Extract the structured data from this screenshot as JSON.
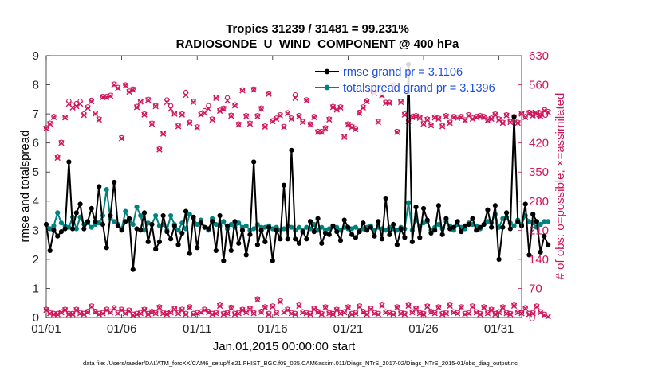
{
  "chart_data": {
    "type": "line",
    "title": "Tropics 31239 / 31481 = 99.231%",
    "subtitle": "RADIOSONDE_U_WIND_COMPONENT @ 400 hPa",
    "xlabel": "Jan.01,2015 00:00:00 start",
    "ylabel_left": "rmse and totalspread",
    "ylabel_right": "# of obs: o=possible; ×=assimilated",
    "footer": "data file: /Users/raeder/DAI/ATM_forcXX/CAM6_setup/f.e21.FHIST_BGC.f09_025.CAM6assim.011/Diags_NTrS_2017-02/Diags_NTrS_2015-01/obs_diag_output.nc",
    "xlim": [
      0,
      31.5
    ],
    "ylim_left": [
      0,
      9
    ],
    "ylim_right": [
      0,
      630
    ],
    "x_ticks": [
      0,
      5,
      10,
      15,
      20,
      25,
      30
    ],
    "x_tick_labels": [
      "01/01",
      "01/06",
      "01/11",
      "01/16",
      "01/21",
      "01/26",
      "01/31"
    ],
    "y_left_ticks": [
      0,
      1,
      2,
      3,
      4,
      5,
      6,
      7,
      8,
      9
    ],
    "y_left_tick_labels": [
      "0",
      "1",
      "2",
      "3",
      "4",
      "5",
      "6",
      "7",
      "8",
      "9"
    ],
    "y_right_ticks": [
      0,
      70,
      140,
      210,
      280,
      350,
      420,
      490,
      560,
      630
    ],
    "y_right_tick_labels": [
      "0",
      "70",
      "140",
      "210",
      "280",
      "350",
      "420",
      "490",
      "560",
      "630"
    ],
    "colors": {
      "rmse": "#000000",
      "spread": "#00837f",
      "obs": "#d0145a",
      "legend_text": "#1f4fe0"
    },
    "legend": [
      {
        "label": "rmse grand pr = 3.1106",
        "series": "rmse"
      },
      {
        "label": "totalspread grand pr = 3.1396",
        "series": "spread"
      }
    ],
    "time_step": 0.25,
    "series": [
      {
        "name": "rmse",
        "values": [
          3.2,
          2.3,
          3.0,
          2.8,
          2.95,
          3.05,
          5.35,
          3.05,
          3.6,
          3.9,
          3.05,
          3.3,
          3.75,
          3.3,
          4.5,
          3.2,
          2.4,
          3.5,
          4.65,
          3.15,
          3.0,
          3.3,
          3.4,
          1.65,
          3.05,
          3.0,
          3.6,
          2.6,
          3.2,
          2.35,
          2.6,
          3.5,
          2.95,
          2.7,
          3.15,
          2.5,
          2.9,
          3.65,
          2.2,
          3.45,
          2.4,
          3.25,
          3.1,
          3.05,
          3.3,
          2.3,
          3.5,
          1.95,
          3.15,
          2.3,
          3.3,
          2.55,
          3.0,
          2.15,
          2.85,
          5.35,
          2.5,
          3.0,
          2.6,
          3.1,
          1.95,
          3.0,
          2.7,
          4.55,
          2.7,
          5.75,
          2.7,
          2.55,
          2.95,
          2.7,
          3.3,
          2.95,
          3.4,
          2.55,
          2.9,
          2.85,
          3.15,
          2.95,
          2.65,
          3.35,
          3.1,
          2.85,
          2.75,
          2.95,
          3.25,
          3.0,
          3.1,
          2.8,
          3.3,
          2.7,
          4.1,
          2.85,
          3.2,
          2.5,
          3.05,
          2.75,
          8.7,
          2.6,
          3.8,
          2.75,
          3.75,
          3.35,
          2.9,
          3.0,
          3.85,
          2.85,
          3.4,
          3.05,
          3.1,
          3.3,
          2.95,
          3.15,
          3.2,
          3.4,
          3.0,
          3.1,
          3.2,
          3.7,
          3.1,
          3.85,
          2.0,
          3.1,
          3.6,
          3.05,
          6.9,
          3.3,
          3.15,
          3.9,
          2.15,
          3.55,
          3.3,
          2.25,
          2.8,
          2.5
        ],
        "marker": "filled-circle"
      },
      {
        "name": "totalspread",
        "values": [
          3.2,
          3.05,
          3.15,
          3.6,
          3.25,
          3.15,
          3.1,
          3.45,
          3.05,
          3.45,
          3.2,
          3.25,
          3.1,
          3.2,
          3.25,
          3.5,
          4.4,
          3.4,
          3.3,
          3.2,
          3.05,
          3.65,
          3.35,
          3.2,
          3.8,
          3.5,
          3.0,
          3.25,
          3.2,
          3.5,
          3.15,
          3.2,
          3.0,
          3.5,
          3.2,
          3.0,
          3.25,
          3.05,
          3.55,
          3.4,
          3.2,
          3.35,
          3.1,
          3.0,
          3.4,
          3.2,
          3.15,
          3.3,
          3.05,
          3.2,
          3.1,
          3.25,
          3.1,
          3.15,
          3.0,
          3.05,
          3.2,
          3.1,
          3.1,
          3.15,
          3.05,
          3.1,
          3.0,
          3.05,
          3.15,
          3.1,
          3.0,
          3.1,
          3.0,
          3.1,
          3.05,
          3.2,
          3.0,
          3.1,
          3.0,
          3.05,
          3.15,
          3.1,
          3.0,
          3.1,
          3.05,
          3.05,
          3.1,
          3.0,
          3.05,
          3.1,
          3.15,
          3.0,
          3.1,
          3.05,
          3.0,
          3.1,
          3.05,
          3.0,
          3.1,
          3.05,
          3.95,
          3.0,
          3.35,
          3.15,
          3.25,
          3.3,
          3.0,
          3.1,
          3.2,
          3.05,
          3.3,
          3.15,
          3.0,
          3.2,
          3.1,
          3.05,
          3.25,
          3.2,
          3.15,
          3.05,
          3.2,
          3.3,
          3.25,
          3.55,
          3.1,
          3.4,
          3.45,
          3.25,
          3.15,
          3.35,
          3.2,
          3.5,
          3.3,
          3.25,
          3.1,
          3.2,
          3.3,
          3.3
        ],
        "marker": "filled-circle"
      },
      {
        "name": "obs_possible_upper",
        "values": [
          457,
          468,
          484,
          386,
          422,
          483,
          521,
          512,
          515,
          521,
          490,
          507,
          523,
          492,
          478,
          532,
          532,
          535,
          562,
          554,
          433,
          560,
          545,
          550,
          508,
          521,
          490,
          525,
          468,
          510,
          406,
          444,
          524,
          510,
          492,
          462,
          490,
          542,
          470,
          520,
          459,
          490,
          498,
          510,
          478,
          530,
          499,
          504,
          529,
          487,
          512,
          466,
          548,
          486,
          468,
          550,
          486,
          504,
          461,
          540,
          474,
          480,
          488,
          460,
          493,
          480,
          536,
          486,
          472,
          524,
          466,
          484,
          448,
          448,
          457,
          478,
          508,
          502,
          507,
          436,
          466,
          460,
          455,
          494,
          507,
          522,
          548,
          542,
          472,
          536,
          518,
          518,
          560,
          448,
          520,
          490,
          474,
          484,
          486,
          482,
          468,
          478,
          464,
          483,
          480,
          462,
          486,
          470,
          484,
          482,
          484,
          476,
          488,
          480,
          484,
          486,
          484,
          476,
          480,
          490,
          478,
          470,
          488,
          472,
          484,
          470,
          492,
          484,
          494,
          488,
          492,
          486,
          500,
          496
        ],
        "marker": "circle"
      },
      {
        "name": "obs_assimilated_upper",
        "values": [
          455,
          466,
          482,
          384,
          420,
          481,
          514,
          505,
          508,
          514,
          487,
          504,
          520,
          490,
          476,
          530,
          530,
          533,
          560,
          552,
          431,
          558,
          543,
          548,
          506,
          519,
          488,
          523,
          466,
          508,
          404,
          442,
          518,
          502,
          490,
          460,
          488,
          535,
          468,
          518,
          457,
          488,
          492,
          502,
          476,
          528,
          497,
          502,
          522,
          485,
          510,
          464,
          546,
          484,
          466,
          548,
          484,
          502,
          459,
          538,
          472,
          478,
          486,
          458,
          491,
          478,
          528,
          484,
          470,
          522,
          464,
          482,
          446,
          446,
          455,
          476,
          506,
          500,
          505,
          434,
          464,
          458,
          453,
          492,
          505,
          520,
          546,
          540,
          470,
          534,
          516,
          516,
          558,
          446,
          518,
          488,
          472,
          482,
          484,
          480,
          466,
          476,
          462,
          481,
          478,
          460,
          484,
          468,
          482,
          480,
          482,
          474,
          486,
          478,
          482,
          484,
          482,
          474,
          478,
          488,
          476,
          468,
          486,
          470,
          482,
          468,
          490,
          482,
          492,
          486,
          490,
          484,
          498,
          494
        ],
        "marker": "x"
      },
      {
        "name": "obs_possible_lower",
        "values": [
          20,
          12,
          10,
          10,
          14,
          20,
          10,
          10,
          20,
          12,
          10,
          15,
          28,
          15,
          10,
          12,
          20,
          14,
          24,
          12,
          20,
          12,
          18,
          8,
          10,
          12,
          20,
          10,
          15,
          12,
          26,
          12,
          10,
          14,
          22,
          12,
          20,
          10,
          26,
          10,
          12,
          14,
          20,
          15,
          10,
          12,
          30,
          10,
          12,
          25,
          10,
          12,
          20,
          14,
          22,
          12,
          45,
          15,
          26,
          10,
          28,
          12,
          40,
          14,
          20,
          12,
          10,
          30,
          14,
          12,
          10,
          22,
          15,
          10,
          26,
          12,
          10,
          20,
          12,
          14,
          26,
          10,
          12,
          28,
          15,
          10,
          22,
          12,
          10,
          30,
          14,
          12,
          10,
          26,
          12,
          10,
          30,
          14,
          22,
          12,
          10,
          28,
          15,
          12,
          26,
          10,
          12,
          30,
          14,
          12,
          26,
          10,
          12,
          28,
          14,
          10,
          26,
          12,
          20,
          10,
          14,
          26,
          12,
          10,
          30,
          14,
          12,
          24,
          10,
          12,
          28,
          14,
          8,
          4
        ],
        "marker": "circle"
      },
      {
        "name": "obs_assimilated_lower",
        "values": [
          18,
          10,
          8,
          8,
          12,
          18,
          8,
          8,
          18,
          10,
          8,
          13,
          26,
          13,
          8,
          10,
          18,
          12,
          22,
          10,
          18,
          10,
          16,
          6,
          8,
          10,
          18,
          8,
          13,
          10,
          24,
          10,
          8,
          12,
          20,
          10,
          18,
          8,
          24,
          8,
          10,
          12,
          18,
          13,
          8,
          10,
          28,
          8,
          10,
          23,
          8,
          10,
          18,
          12,
          20,
          10,
          43,
          13,
          24,
          8,
          26,
          10,
          38,
          12,
          18,
          10,
          8,
          28,
          12,
          10,
          8,
          20,
          13,
          8,
          24,
          10,
          8,
          18,
          10,
          12,
          24,
          8,
          10,
          26,
          13,
          8,
          20,
          10,
          8,
          28,
          12,
          10,
          8,
          24,
          10,
          8,
          28,
          12,
          20,
          10,
          8,
          26,
          13,
          10,
          24,
          8,
          10,
          28,
          12,
          10,
          24,
          8,
          10,
          26,
          12,
          8,
          24,
          10,
          18,
          8,
          12,
          24,
          10,
          8,
          28,
          12,
          10,
          22,
          8,
          10,
          26,
          12,
          6,
          2
        ],
        "marker": "x"
      }
    ]
  }
}
